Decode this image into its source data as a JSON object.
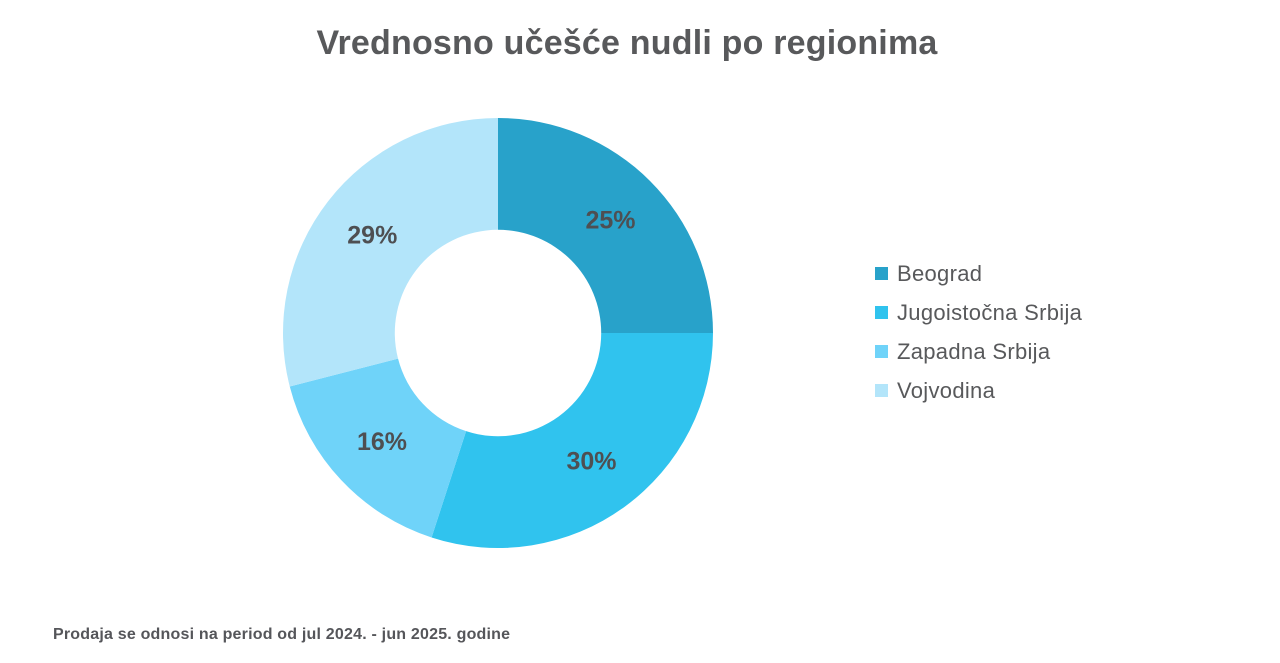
{
  "page": {
    "background_color": "#ffffff",
    "text_color": "#58595b"
  },
  "chart_data": {
    "type": "pie",
    "variant": "donut",
    "title": "Vrednosno učešće nudli po regionima",
    "categories": [
      "Beograd",
      "Jugoistočna Srbija",
      "Zapadna Srbija",
      "Vojvodina"
    ],
    "values": [
      25,
      30,
      16,
      29
    ],
    "labels": [
      "25%",
      "30%",
      "16%",
      "29%"
    ],
    "unit": "%",
    "colors": [
      "#28A2CA",
      "#30C3EE",
      "#6FD3F9",
      "#B3E5FA"
    ],
    "legend_position": "right",
    "start_angle_deg": 0,
    "direction": "clockwise",
    "inner_radius_ratio": 0.48,
    "slice_label_color": "#4e4f52",
    "legend_text_color": "#58595b"
  },
  "footnote": "Prodaja se odnosi na period od jul 2024. - jun 2025. godine"
}
